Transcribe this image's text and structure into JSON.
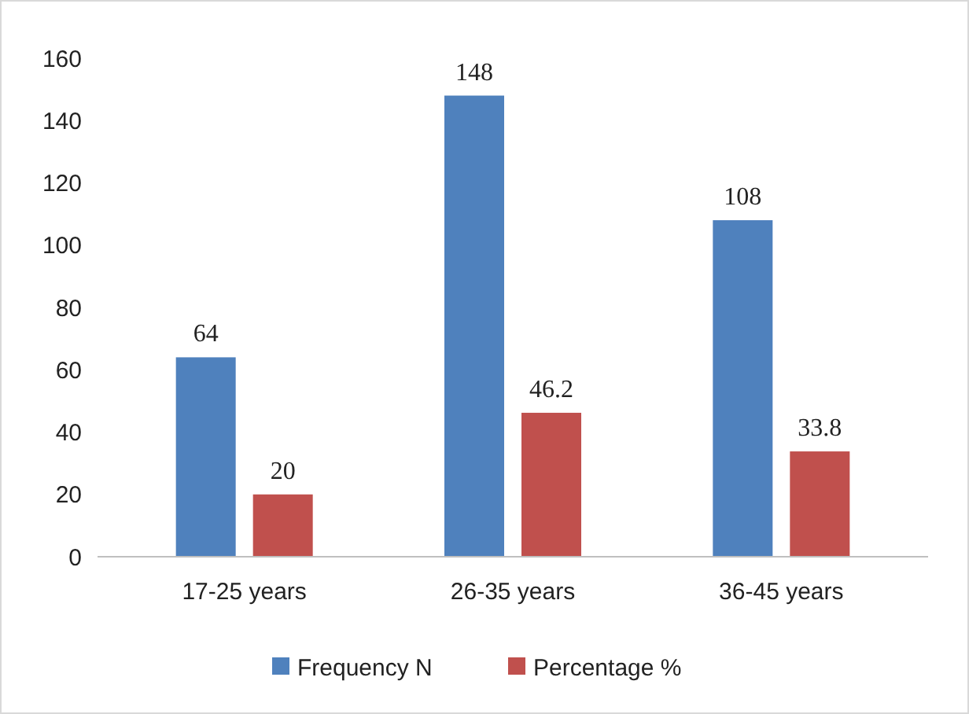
{
  "chart_data": {
    "type": "bar",
    "categories": [
      "17-25 years",
      "26-35 years",
      "36-45 years"
    ],
    "series": [
      {
        "name": "Frequency N",
        "color": "#4f81bd",
        "values": [
          64,
          148,
          108
        ]
      },
      {
        "name": "Percentage %",
        "color": "#c0504d",
        "values": [
          20,
          46.2,
          33.8
        ]
      }
    ],
    "ylim": [
      0,
      160
    ],
    "yticks": [
      0,
      20,
      40,
      60,
      80,
      100,
      120,
      140,
      160
    ],
    "grid": false,
    "legend": "bottom",
    "data_labels": true
  }
}
